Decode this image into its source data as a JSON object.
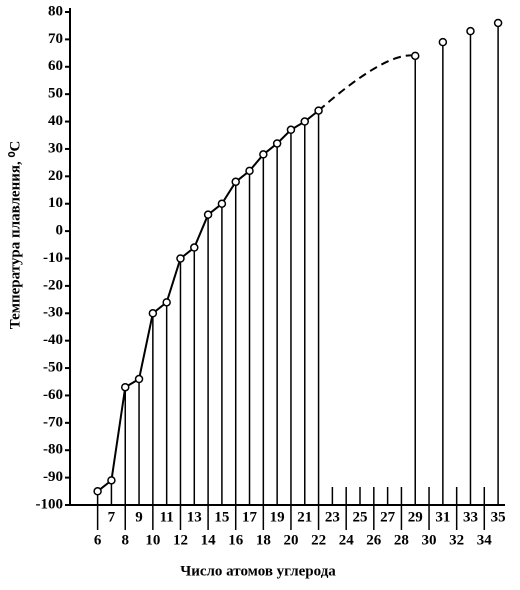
{
  "chart_data": {
    "type": "line",
    "xlabel": "Число атомов углерода",
    "ylabel": "Температура плавления, ⁰C",
    "x": [
      6,
      7,
      8,
      9,
      10,
      11,
      12,
      13,
      14,
      15,
      16,
      17,
      18,
      19,
      20,
      21,
      22,
      29,
      31,
      33,
      35
    ],
    "values": [
      -95,
      -91,
      -57,
      -54,
      -30,
      -26,
      -10,
      -6,
      6,
      10,
      18,
      22,
      28,
      32,
      37,
      40,
      44,
      64,
      69,
      73,
      76
    ],
    "color": "#000000",
    "xlim": [
      4,
      35.5
    ],
    "xticks": [
      6,
      7,
      8,
      9,
      10,
      11,
      12,
      13,
      14,
      15,
      16,
      17,
      18,
      19,
      20,
      21,
      22,
      23,
      24,
      25,
      26,
      27,
      28,
      29,
      30,
      31,
      32,
      33,
      34,
      35
    ],
    "ylim": [
      -100,
      80
    ],
    "yticks": [
      -100,
      -90,
      -80,
      -70,
      -60,
      -50,
      -40,
      -30,
      -20,
      -10,
      0,
      10,
      20,
      30,
      40,
      50,
      60,
      70,
      80
    ]
  }
}
